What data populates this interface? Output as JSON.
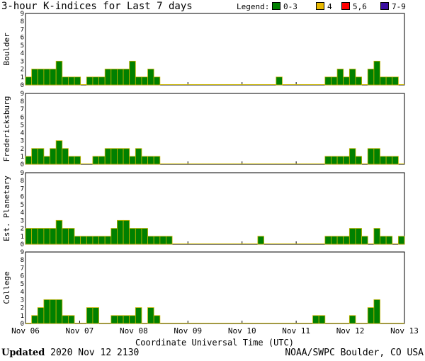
{
  "title": "3-hour K-indices for Last 7 days",
  "legend": {
    "label": "Legend:",
    "items": [
      {
        "text": "0-3",
        "color": "#008000"
      },
      {
        "text": "4",
        "color": "#e8b800"
      },
      {
        "text": "5,6",
        "color": "#ff0000"
      },
      {
        "text": "7-9",
        "color": "#3a0fa0"
      }
    ]
  },
  "footer": {
    "updated_label": "Updated",
    "updated_value": "2020 Nov 12 2130",
    "source": "NOAA/SWPC Boulder, CO USA"
  },
  "chart_data": [
    {
      "type": "bar",
      "ylabel": "Boulder",
      "ylim": [
        0,
        9
      ],
      "yticks": [
        "0",
        "1",
        "2",
        "3",
        "4",
        "5",
        "6",
        "7",
        "8",
        "9"
      ],
      "values": [
        1,
        2,
        2,
        2,
        2,
        3,
        1,
        1,
        1,
        0,
        1,
        1,
        1,
        2,
        2,
        2,
        2,
        3,
        1,
        1,
        2,
        1,
        0,
        0,
        0,
        0,
        0,
        0,
        0,
        0,
        0,
        0,
        0,
        0,
        0,
        0,
        0,
        0,
        0,
        0,
        0,
        1,
        0,
        0,
        0,
        0,
        0,
        0,
        0,
        1,
        1,
        2,
        1,
        2,
        1,
        0,
        2,
        3,
        1,
        1,
        1,
        0
      ]
    },
    {
      "type": "bar",
      "ylabel": "Fredericksburg",
      "ylim": [
        0,
        9
      ],
      "yticks": [
        "0",
        "1",
        "2",
        "3",
        "4",
        "5",
        "6",
        "7",
        "8",
        "9"
      ],
      "values": [
        1,
        2,
        2,
        1,
        2,
        3,
        2,
        1,
        1,
        0,
        0,
        1,
        1,
        2,
        2,
        2,
        2,
        1,
        2,
        1,
        1,
        1,
        0,
        0,
        0,
        0,
        0,
        0,
        0,
        0,
        0,
        0,
        0,
        0,
        0,
        0,
        0,
        0,
        0,
        0,
        0,
        0,
        0,
        0,
        0,
        0,
        0,
        0,
        0,
        1,
        1,
        1,
        1,
        2,
        1,
        0,
        2,
        2,
        1,
        1,
        1,
        0
      ]
    },
    {
      "type": "bar",
      "ylabel": "Est. Planetary",
      "ylim": [
        0,
        9
      ],
      "yticks": [
        "0",
        "1",
        "2",
        "3",
        "4",
        "5",
        "6",
        "7",
        "8",
        "9"
      ],
      "values": [
        2,
        2,
        2,
        2,
        2,
        3,
        2,
        2,
        1,
        1,
        1,
        1,
        1,
        1,
        2,
        3,
        3,
        2,
        2,
        2,
        1,
        1,
        1,
        1,
        0,
        0,
        0,
        0,
        0,
        0,
        0,
        0,
        0,
        0,
        0,
        0,
        0,
        0,
        1,
        0,
        0,
        0,
        0,
        0,
        0,
        0,
        0,
        0,
        0,
        1,
        1,
        1,
        1,
        2,
        2,
        1,
        0,
        2,
        1,
        1,
        0,
        1
      ]
    },
    {
      "type": "bar",
      "ylabel": "College",
      "ylim": [
        0,
        9
      ],
      "yticks": [
        "0",
        "1",
        "2",
        "3",
        "4",
        "5",
        "6",
        "7",
        "8",
        "9"
      ],
      "values": [
        0,
        1,
        2,
        3,
        3,
        3,
        1,
        1,
        0,
        0,
        2,
        2,
        0,
        0,
        1,
        1,
        1,
        1,
        2,
        0,
        2,
        1,
        0,
        0,
        0,
        0,
        0,
        0,
        0,
        0,
        0,
        0,
        0,
        0,
        0,
        0,
        0,
        0,
        0,
        0,
        0,
        0,
        0,
        0,
        0,
        0,
        0,
        1,
        1,
        0,
        0,
        0,
        0,
        1,
        0,
        0,
        2,
        3,
        0,
        0,
        0,
        0
      ]
    }
  ],
  "x_axis": {
    "label": "Coordinate Universal Time (UTC)",
    "ticks": [
      "Nov 06",
      "Nov 07",
      "Nov 08",
      "Nov 09",
      "Nov 10",
      "Nov 11",
      "Nov 12",
      "Nov 13"
    ]
  }
}
